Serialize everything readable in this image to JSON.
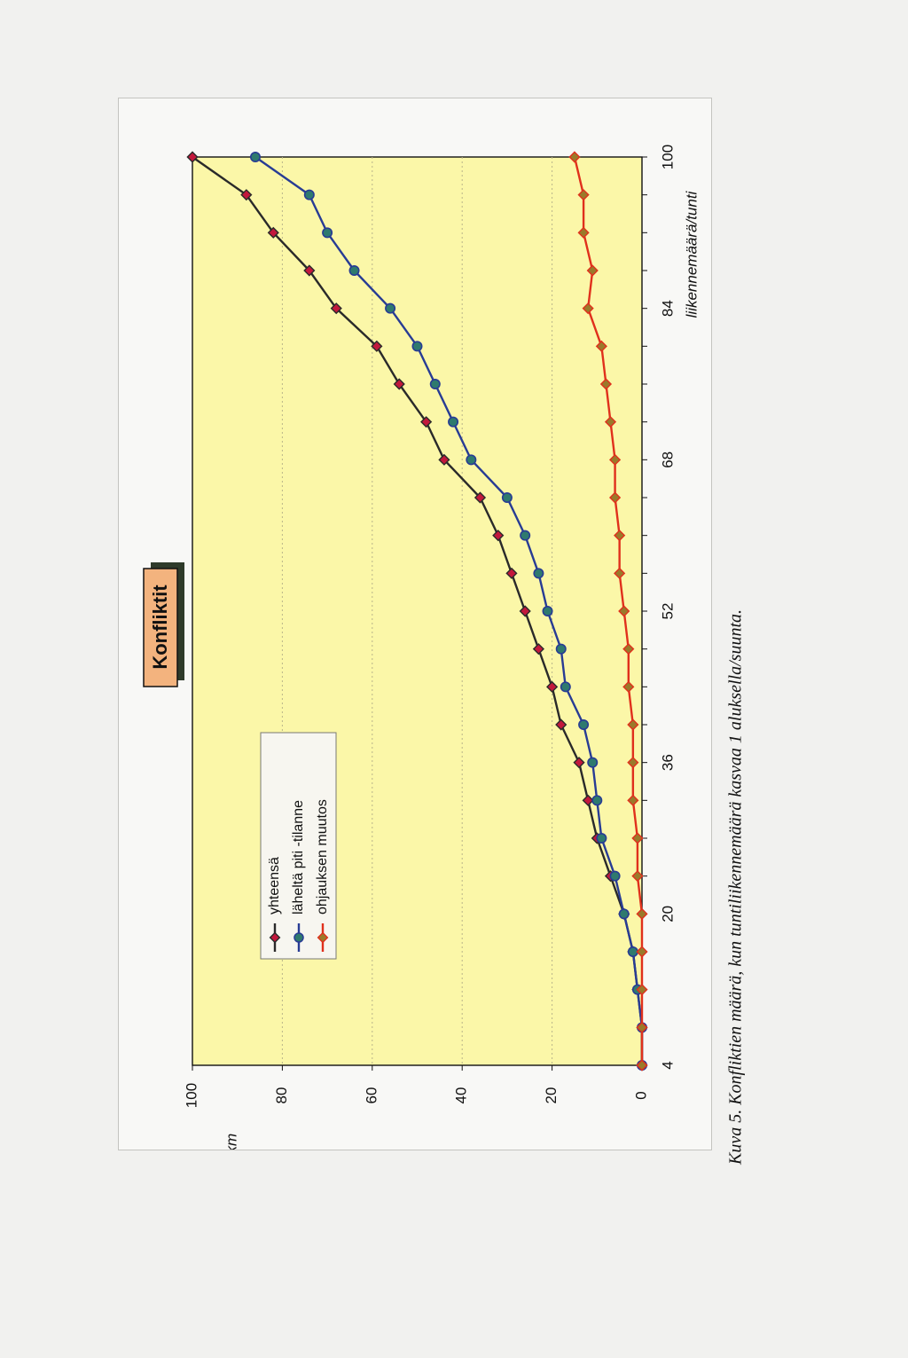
{
  "chart_data": {
    "type": "line",
    "title": "Konfliktit",
    "ylabel": "lkm",
    "xlabel": "liikennemäärä/tunti",
    "x": [
      4,
      8,
      12,
      16,
      20,
      24,
      28,
      32,
      36,
      40,
      44,
      48,
      52,
      56,
      60,
      64,
      68,
      72,
      76,
      80,
      84,
      88,
      92,
      96,
      100
    ],
    "x_ticks": [
      4,
      20,
      36,
      52,
      68,
      84,
      100
    ],
    "y_ticks": [
      0,
      20,
      40,
      60,
      80,
      100
    ],
    "xlim": [
      4,
      100
    ],
    "ylim": [
      0,
      100
    ],
    "grid": "horizontal dotted",
    "legend_position": "upper-left",
    "orientation": "rotated 90° counter-clockwise",
    "series": [
      {
        "name": "yhteensä",
        "color": "#2a2a2a",
        "marker_color": "#c2183c",
        "marker": "diamond",
        "values": [
          0,
          0,
          1,
          2,
          4,
          7,
          10,
          12,
          14,
          18,
          20,
          23,
          26,
          29,
          32,
          36,
          44,
          48,
          54,
          59,
          68,
          74,
          82,
          88,
          100
        ]
      },
      {
        "name": "läheltä piti -tilanne",
        "color": "#283c94",
        "marker_color": "#2f7a6e",
        "marker": "circle",
        "values": [
          0,
          0,
          1,
          2,
          4,
          6,
          9,
          10,
          11,
          13,
          17,
          18,
          21,
          23,
          26,
          30,
          38,
          42,
          46,
          50,
          56,
          64,
          70,
          74,
          86
        ]
      },
      {
        "name": "ohjauksen muutos",
        "color": "#e0301c",
        "marker_color": "#9a7a2a",
        "marker": "diamond",
        "values": [
          0,
          0,
          0,
          0,
          0,
          1,
          1,
          2,
          2,
          2,
          3,
          3,
          4,
          5,
          5,
          6,
          6,
          7,
          8,
          9,
          12,
          11,
          13,
          13,
          15
        ]
      }
    ]
  },
  "caption": "Kuva 5. Konfliktien määrä, kun tuntiliikennemäärä kasvaa 1 aluksella/suunta."
}
